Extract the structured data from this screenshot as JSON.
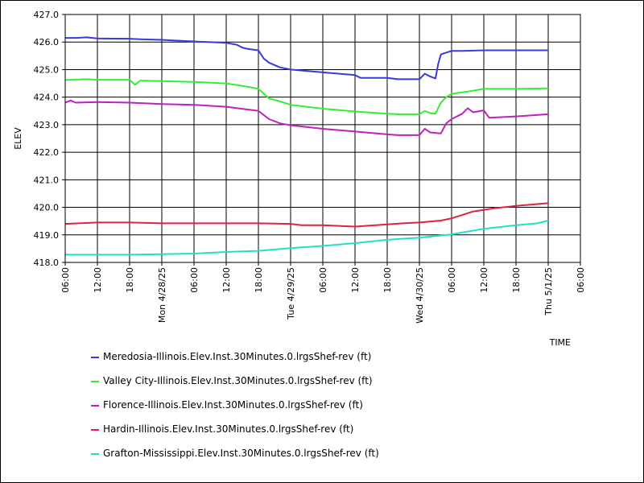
{
  "chart_data": {
    "type": "line",
    "ylabel": "ELEV",
    "xlabel": "TIME",
    "y_ticks": [
      "418.0",
      "419.0",
      "420.0",
      "421.0",
      "422.0",
      "423.0",
      "424.0",
      "425.0",
      "426.0",
      "427.0"
    ],
    "ylim": [
      418.0,
      427.0
    ],
    "xlim_hours": [
      0,
      96
    ],
    "x_start": "2025-04-27 06:00",
    "x_ticks": [
      {
        "h": 0,
        "label": "06:00"
      },
      {
        "h": 6,
        "label": "12:00"
      },
      {
        "h": 12,
        "label": "18:00"
      },
      {
        "h": 18,
        "label": "Mon 4/28/25"
      },
      {
        "h": 24,
        "label": "06:00"
      },
      {
        "h": 30,
        "label": "12:00"
      },
      {
        "h": 36,
        "label": "18:00"
      },
      {
        "h": 42,
        "label": "Tue 4/29/25"
      },
      {
        "h": 48,
        "label": "06:00"
      },
      {
        "h": 54,
        "label": "12:00"
      },
      {
        "h": 60,
        "label": "18:00"
      },
      {
        "h": 66,
        "label": "Wed 4/30/25"
      },
      {
        "h": 72,
        "label": "06:00"
      },
      {
        "h": 78,
        "label": "12:00"
      },
      {
        "h": 84,
        "label": "18:00"
      },
      {
        "h": 90,
        "label": "Thu 5/1/25"
      },
      {
        "h": 96,
        "label": "06:00"
      }
    ],
    "grid": true,
    "legend_position": "bottom",
    "series": [
      {
        "name": "Meredosia-Illinois.Elev.Inst.30Minutes.0.lrgsShef-rev (ft)",
        "color": "#3a3adb",
        "points": [
          [
            0,
            426.15
          ],
          [
            2,
            426.15
          ],
          [
            4,
            426.17
          ],
          [
            6,
            426.13
          ],
          [
            12,
            426.12
          ],
          [
            14,
            426.1
          ],
          [
            18,
            426.08
          ],
          [
            24,
            426.02
          ],
          [
            30,
            425.97
          ],
          [
            32,
            425.9
          ],
          [
            33,
            425.8
          ],
          [
            34,
            425.75
          ],
          [
            36,
            425.7
          ],
          [
            37,
            425.4
          ],
          [
            38,
            425.25
          ],
          [
            40,
            425.08
          ],
          [
            42,
            425.0
          ],
          [
            48,
            424.9
          ],
          [
            54,
            424.8
          ],
          [
            55,
            424.7
          ],
          [
            60,
            424.7
          ],
          [
            62,
            424.65
          ],
          [
            66,
            424.65
          ],
          [
            67,
            424.85
          ],
          [
            68,
            424.75
          ],
          [
            69,
            424.68
          ],
          [
            69.5,
            425.2
          ],
          [
            70,
            425.55
          ],
          [
            72,
            425.68
          ],
          [
            74,
            425.68
          ],
          [
            78,
            425.7
          ],
          [
            84,
            425.7
          ],
          [
            90,
            425.7
          ]
        ]
      },
      {
        "name": "Valley City-Illinois.Elev.Inst.30Minutes.0.lrgsShef-rev (ft)",
        "color": "#33ee33",
        "points": [
          [
            0,
            424.62
          ],
          [
            4,
            424.65
          ],
          [
            6,
            424.63
          ],
          [
            12,
            424.63
          ],
          [
            13,
            424.45
          ],
          [
            14,
            424.6
          ],
          [
            18,
            424.58
          ],
          [
            24,
            424.55
          ],
          [
            30,
            424.5
          ],
          [
            34,
            424.38
          ],
          [
            36,
            424.3
          ],
          [
            38,
            423.95
          ],
          [
            40,
            423.85
          ],
          [
            42,
            423.72
          ],
          [
            48,
            423.58
          ],
          [
            54,
            423.48
          ],
          [
            60,
            423.4
          ],
          [
            62,
            423.38
          ],
          [
            66,
            423.38
          ],
          [
            67,
            423.5
          ],
          [
            68,
            423.42
          ],
          [
            69,
            423.4
          ],
          [
            70,
            423.8
          ],
          [
            71,
            424.0
          ],
          [
            72,
            424.12
          ],
          [
            75,
            424.2
          ],
          [
            78,
            424.3
          ],
          [
            84,
            424.3
          ],
          [
            90,
            424.32
          ]
        ]
      },
      {
        "name": "Florence-Illinois.Elev.Inst.30Minutes.0.lrgsShef-rev (ft)",
        "color": "#c020c0",
        "points": [
          [
            0,
            423.8
          ],
          [
            1,
            423.88
          ],
          [
            2,
            423.8
          ],
          [
            6,
            423.82
          ],
          [
            12,
            423.8
          ],
          [
            18,
            423.75
          ],
          [
            24,
            423.72
          ],
          [
            30,
            423.65
          ],
          [
            36,
            423.5
          ],
          [
            38,
            423.2
          ],
          [
            40,
            423.05
          ],
          [
            42,
            422.98
          ],
          [
            48,
            422.85
          ],
          [
            54,
            422.75
          ],
          [
            60,
            422.65
          ],
          [
            62,
            422.62
          ],
          [
            66,
            422.62
          ],
          [
            67,
            422.85
          ],
          [
            68,
            422.72
          ],
          [
            70,
            422.68
          ],
          [
            71,
            423.05
          ],
          [
            72,
            423.2
          ],
          [
            74,
            423.4
          ],
          [
            75,
            423.6
          ],
          [
            76,
            423.45
          ],
          [
            78,
            423.52
          ],
          [
            79,
            423.25
          ],
          [
            84,
            423.3
          ],
          [
            90,
            423.38
          ]
        ]
      },
      {
        "name": "Hardin-Illinois.Elev.Inst.30Minutes.0.lrgsShef-rev (ft)",
        "color": "#dd2244",
        "points": [
          [
            0,
            419.4
          ],
          [
            6,
            419.45
          ],
          [
            12,
            419.45
          ],
          [
            18,
            419.42
          ],
          [
            24,
            419.42
          ],
          [
            30,
            419.42
          ],
          [
            36,
            419.42
          ],
          [
            42,
            419.4
          ],
          [
            44,
            419.35
          ],
          [
            48,
            419.35
          ],
          [
            54,
            419.3
          ],
          [
            60,
            419.38
          ],
          [
            63,
            419.42
          ],
          [
            66,
            419.45
          ],
          [
            70,
            419.52
          ],
          [
            72,
            419.6
          ],
          [
            74,
            419.72
          ],
          [
            76,
            419.85
          ],
          [
            80,
            419.97
          ],
          [
            84,
            420.05
          ],
          [
            90,
            420.15
          ]
        ]
      },
      {
        "name": "Grafton-Mississippi.Elev.Inst.30Minutes.0.lrgsShef-rev (ft)",
        "color": "#22e0c8",
        "points": [
          [
            0,
            418.28
          ],
          [
            6,
            418.28
          ],
          [
            12,
            418.28
          ],
          [
            18,
            418.3
          ],
          [
            24,
            418.32
          ],
          [
            30,
            418.38
          ],
          [
            36,
            418.42
          ],
          [
            42,
            418.52
          ],
          [
            48,
            418.6
          ],
          [
            54,
            418.7
          ],
          [
            60,
            418.82
          ],
          [
            66,
            418.9
          ],
          [
            72,
            419.02
          ],
          [
            78,
            419.22
          ],
          [
            84,
            419.35
          ],
          [
            88,
            419.42
          ],
          [
            90,
            419.52
          ]
        ]
      }
    ]
  }
}
